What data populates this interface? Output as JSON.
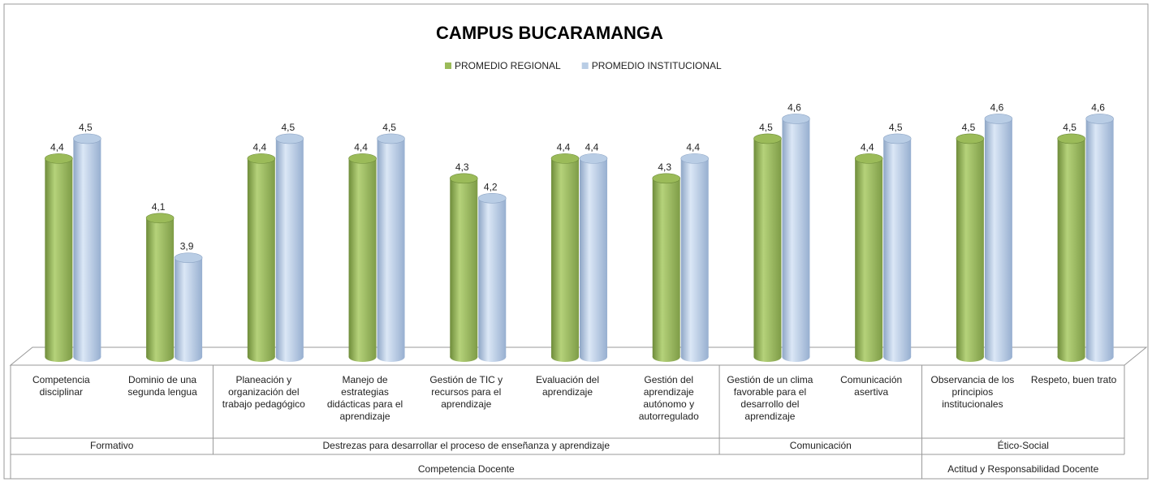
{
  "chart_data": {
    "type": "bar",
    "title": "CAMPUS BUCARAMANGA",
    "groups": [
      {
        "label": "Competencia Docente",
        "subgroups": [
          {
            "label": "Formativo",
            "categories": [
              "Competencia disciplinar",
              "Dominio de una segunda lengua"
            ]
          },
          {
            "label": "Destrezas para desarrollar el proceso de enseñanza y aprendizaje",
            "categories": [
              "Planeación y organización del trabajo pedagógico",
              "Manejo de estrategias didácticas para el aprendizaje",
              "Gestión de TIC y recursos para el aprendizaje",
              "Evaluación del aprendizaje",
              "Gestión del aprendizaje autónomo y autorregulado"
            ]
          },
          {
            "label": "Comunicación",
            "categories": [
              "Gestión de un clima favorable para el desarrollo del aprendizaje",
              "Comunicación asertiva"
            ]
          }
        ]
      },
      {
        "label": "Actitud y Responsabilidad Docente",
        "subgroups": [
          {
            "label": "Ético-Social",
            "categories": [
              "Observancia de los principios institucionales",
              "Respeto, buen trato"
            ]
          }
        ]
      }
    ],
    "series": [
      {
        "name": "PROMEDIO REGIONAL",
        "color": "#9bbb59",
        "values": [
          4.4,
          4.1,
          4.4,
          4.4,
          4.3,
          4.4,
          4.3,
          4.5,
          4.4,
          4.5,
          4.5
        ],
        "value_labels": [
          "4,4",
          "4,1",
          "4,4",
          "4,4",
          "4,3",
          "4,4",
          "4,3",
          "4,5",
          "4,4",
          "4,5",
          "4,5"
        ]
      },
      {
        "name": "PROMEDIO INSTITUCIONAL",
        "color": "#b9cde5",
        "values": [
          4.5,
          3.9,
          4.5,
          4.5,
          4.2,
          4.4,
          4.4,
          4.6,
          4.5,
          4.6,
          4.6
        ],
        "value_labels": [
          "4,5",
          "3,9",
          "4,5",
          "4,5",
          "4,2",
          "4,4",
          "4,4",
          "4,6",
          "4,5",
          "4,6",
          "4,6"
        ]
      }
    ],
    "ylim": [
      3.4,
      4.7
    ]
  }
}
